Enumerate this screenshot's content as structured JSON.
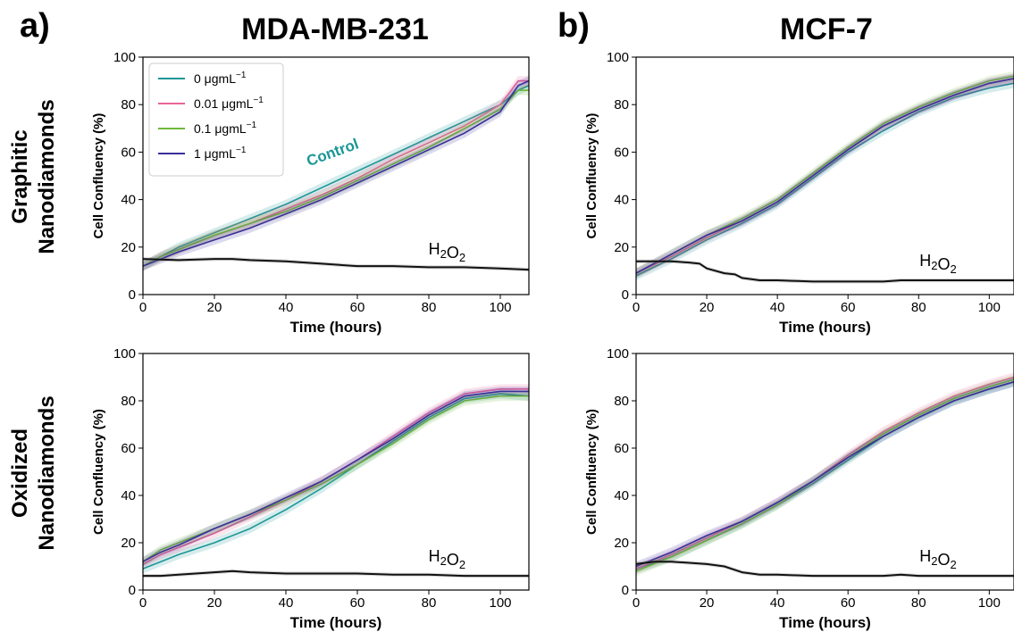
{
  "labels": {
    "panel_a": "a)",
    "panel_b": "b)",
    "col_left": "MDA-MB-231",
    "col_right": "MCF-7",
    "row_top_line1": "Graphitic",
    "row_top_line2": "Nanodiamonds",
    "row_bottom_line1": "Oxidized",
    "row_bottom_line2": "Nanodiamonds",
    "control_annotation": "Control"
  },
  "colors": {
    "0": "#1a9696",
    "0.01": "#e8649a",
    "0.1": "#6fb83a",
    "1": "#3a2f9a",
    "h2o2": "#111111",
    "control_text": "#1a9696"
  },
  "legend": {
    "entries": [
      {
        "key": "0",
        "text": "0 μgmL",
        "sup": "−1"
      },
      {
        "key": "0.01",
        "text": "0.01 μgmL",
        "sup": "−1"
      },
      {
        "key": "0.1",
        "text": "0.1 μgmL",
        "sup": "−1"
      },
      {
        "key": "1",
        "text": "1 μgmL",
        "sup": "−1"
      }
    ]
  },
  "chart_data": [
    {
      "type": "line",
      "panel": "MDA-MB-231 Graphitic",
      "xlabel": "Time (hours)",
      "ylabel": "Cell Confluency (%)",
      "xlim": [
        0,
        108
      ],
      "ylim": [
        0,
        100
      ],
      "xticks": [
        0,
        20,
        40,
        60,
        80,
        100
      ],
      "yticks": [
        0,
        20,
        40,
        60,
        80,
        100
      ],
      "legend": "upper-left",
      "annotation": "Control",
      "h2o2_label": "H2O2",
      "series": [
        {
          "name": "0 μgmL−1",
          "key": "0",
          "x": [
            0,
            5,
            10,
            20,
            30,
            40,
            50,
            60,
            70,
            80,
            90,
            100,
            105,
            108
          ],
          "y": [
            12,
            16,
            20,
            26,
            32,
            38,
            45,
            52,
            59,
            66,
            73,
            80,
            86,
            88
          ]
        },
        {
          "name": "0.01 μgmL−1",
          "key": "0.01",
          "x": [
            0,
            5,
            10,
            20,
            30,
            40,
            50,
            60,
            70,
            80,
            90,
            100,
            105,
            108
          ],
          "y": [
            12,
            16,
            19,
            25,
            30,
            36,
            42,
            49,
            57,
            64,
            71,
            80,
            90,
            90
          ]
        },
        {
          "name": "0.1 μgmL−1",
          "key": "0.1",
          "x": [
            0,
            5,
            10,
            20,
            30,
            40,
            50,
            60,
            70,
            80,
            90,
            100,
            105,
            108
          ],
          "y": [
            12,
            16,
            19,
            25,
            30,
            35,
            41,
            48,
            55,
            62,
            70,
            78,
            86,
            86
          ]
        },
        {
          "name": "1 μgmL−1",
          "key": "1",
          "x": [
            0,
            5,
            10,
            20,
            30,
            40,
            50,
            60,
            70,
            80,
            90,
            100,
            105,
            108
          ],
          "y": [
            12,
            15,
            18,
            23,
            28,
            34,
            40,
            47,
            54,
            61,
            68,
            77,
            88,
            90
          ]
        },
        {
          "key": "h2o2",
          "x": [
            0,
            10,
            20,
            25,
            30,
            40,
            50,
            60,
            70,
            80,
            90,
            100,
            108
          ],
          "y": [
            15,
            14.5,
            15,
            15,
            14.5,
            14,
            13,
            12,
            12,
            11.5,
            11.5,
            11,
            10.5
          ]
        }
      ]
    },
    {
      "type": "line",
      "panel": "MCF-7 Graphitic",
      "xlabel": "Time (hours)",
      "ylabel": "Cell Confluency (%)",
      "xlim": [
        0,
        107
      ],
      "ylim": [
        0,
        100
      ],
      "xticks": [
        0,
        20,
        40,
        60,
        80,
        100
      ],
      "yticks": [
        0,
        20,
        40,
        60,
        80,
        100
      ],
      "h2o2_label": "H2O2",
      "series": [
        {
          "key": "0",
          "x": [
            0,
            10,
            20,
            30,
            40,
            50,
            60,
            70,
            80,
            90,
            100,
            107
          ],
          "y": [
            8,
            15,
            23,
            30,
            38,
            49,
            60,
            69,
            77,
            83,
            87,
            89
          ]
        },
        {
          "key": "0.01",
          "x": [
            0,
            10,
            20,
            30,
            40,
            50,
            60,
            70,
            80,
            90,
            100,
            107
          ],
          "y": [
            9,
            16,
            24,
            31,
            39,
            50,
            61,
            71,
            78,
            84,
            89,
            91
          ]
        },
        {
          "key": "0.1",
          "x": [
            0,
            10,
            20,
            30,
            40,
            50,
            60,
            70,
            80,
            90,
            100,
            107
          ],
          "y": [
            9,
            17,
            25,
            32,
            40,
            51,
            62,
            72,
            79,
            85,
            90,
            92
          ]
        },
        {
          "key": "1",
          "x": [
            0,
            10,
            20,
            30,
            40,
            50,
            60,
            70,
            80,
            90,
            100,
            107
          ],
          "y": [
            9,
            17,
            25,
            31,
            39,
            50,
            61,
            71,
            78,
            84,
            89,
            91
          ]
        },
        {
          "key": "h2o2",
          "x": [
            0,
            5,
            10,
            15,
            18,
            20,
            25,
            28,
            30,
            35,
            40,
            50,
            60,
            70,
            75,
            80,
            90,
            100,
            107
          ],
          "y": [
            14,
            14,
            14,
            13.5,
            13,
            11,
            9,
            8.5,
            7,
            6,
            6,
            5.5,
            5.5,
            5.5,
            6,
            6,
            6,
            6,
            6
          ]
        }
      ]
    },
    {
      "type": "line",
      "panel": "MDA-MB-231 Oxidized",
      "xlabel": "Time (hours)",
      "ylabel": "Cell Confluency (%)",
      "xlim": [
        0,
        108
      ],
      "ylim": [
        0,
        100
      ],
      "xticks": [
        0,
        20,
        40,
        60,
        80,
        100
      ],
      "yticks": [
        0,
        20,
        40,
        60,
        80,
        100
      ],
      "h2o2_label": "H2O2",
      "series": [
        {
          "key": "0",
          "x": [
            0,
            5,
            10,
            20,
            30,
            40,
            50,
            60,
            70,
            80,
            90,
            100,
            108
          ],
          "y": [
            9,
            12,
            15,
            20,
            26,
            34,
            43,
            53,
            63,
            73,
            81,
            83,
            82
          ]
        },
        {
          "key": "0.01",
          "x": [
            0,
            5,
            10,
            20,
            30,
            40,
            50,
            60,
            70,
            80,
            90,
            100,
            108
          ],
          "y": [
            11,
            15,
            18,
            24,
            31,
            38,
            46,
            55,
            65,
            75,
            83,
            85,
            85
          ]
        },
        {
          "key": "0.1",
          "x": [
            0,
            5,
            10,
            20,
            30,
            40,
            50,
            60,
            70,
            80,
            90,
            100,
            108
          ],
          "y": [
            12,
            17,
            20,
            26,
            32,
            38,
            45,
            53,
            62,
            72,
            80,
            82,
            82
          ]
        },
        {
          "key": "1",
          "x": [
            0,
            5,
            10,
            20,
            30,
            40,
            50,
            60,
            70,
            80,
            90,
            100,
            108
          ],
          "y": [
            12,
            16,
            19,
            26,
            32,
            39,
            46,
            55,
            64,
            74,
            82,
            84,
            84
          ]
        },
        {
          "key": "h2o2",
          "x": [
            0,
            5,
            10,
            20,
            25,
            30,
            40,
            50,
            60,
            70,
            80,
            90,
            100,
            108
          ],
          "y": [
            6,
            6,
            6.5,
            7.5,
            8,
            7.5,
            7,
            7,
            7,
            6.5,
            6.5,
            6,
            6,
            6
          ]
        }
      ]
    },
    {
      "type": "line",
      "panel": "MCF-7 Oxidized",
      "xlabel": "Time (hours)",
      "ylabel": "Cell Confluency (%)",
      "xlim": [
        0,
        107
      ],
      "ylim": [
        0,
        100
      ],
      "xticks": [
        0,
        20,
        40,
        60,
        80,
        100
      ],
      "yticks": [
        0,
        20,
        40,
        60,
        80,
        100
      ],
      "h2o2_label": "H2O2",
      "series": [
        {
          "key": "0",
          "x": [
            0,
            10,
            20,
            30,
            40,
            50,
            60,
            70,
            80,
            90,
            100,
            107
          ],
          "y": [
            9,
            14,
            21,
            28,
            36,
            45,
            55,
            65,
            73,
            80,
            85,
            88
          ]
        },
        {
          "key": "0.01",
          "x": [
            0,
            10,
            20,
            30,
            40,
            50,
            60,
            70,
            80,
            90,
            100,
            107
          ],
          "y": [
            9,
            15,
            22,
            29,
            37,
            46,
            57,
            67,
            75,
            82,
            87,
            90
          ]
        },
        {
          "key": "0.1",
          "x": [
            0,
            10,
            20,
            30,
            40,
            50,
            60,
            70,
            80,
            90,
            100,
            107
          ],
          "y": [
            8,
            14,
            21,
            28,
            36,
            46,
            56,
            66,
            74,
            81,
            86,
            89
          ]
        },
        {
          "key": "1",
          "x": [
            0,
            10,
            20,
            30,
            40,
            50,
            60,
            70,
            80,
            90,
            100,
            107
          ],
          "y": [
            10,
            16,
            23,
            29,
            37,
            46,
            56,
            65,
            73,
            80,
            85,
            88
          ]
        },
        {
          "key": "h2o2",
          "x": [
            0,
            5,
            10,
            15,
            20,
            25,
            30,
            35,
            40,
            50,
            60,
            70,
            75,
            80,
            90,
            100,
            107
          ],
          "y": [
            11,
            12,
            12,
            11.5,
            11,
            10,
            7.5,
            6.5,
            6.5,
            6,
            6,
            6,
            6.5,
            6,
            6,
            6,
            6
          ]
        }
      ]
    }
  ]
}
